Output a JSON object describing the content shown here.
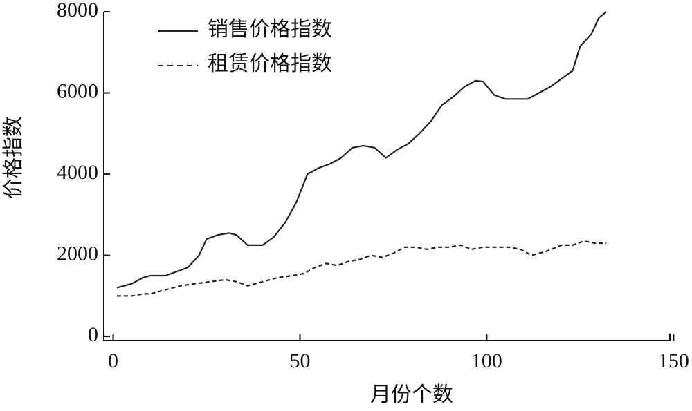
{
  "chart_data": {
    "type": "line",
    "xlabel": "月份个数",
    "ylabel": "价格指数",
    "xlim": [
      -2.5,
      149
    ],
    "ylim": [
      -100,
      8000
    ],
    "xticks": [
      0,
      50,
      100,
      150
    ],
    "yticks": [
      0,
      2000,
      4000,
      6000,
      8000
    ],
    "grid": false,
    "legend": "upper left",
    "series": [
      {
        "name": "销售价格指数",
        "color": "#222222",
        "linestyle": "solid",
        "x": [
          1,
          5,
          8,
          10,
          14,
          17,
          20,
          23,
          25,
          28,
          31,
          33,
          36,
          40,
          43,
          46,
          49,
          52,
          55,
          58,
          61,
          64,
          67,
          70,
          73,
          76,
          79,
          82,
          85,
          88,
          91,
          94,
          97,
          99,
          102,
          105,
          108,
          111,
          114,
          117,
          120,
          123,
          125,
          128,
          130,
          132
        ],
        "values": [
          1200,
          1300,
          1450,
          1500,
          1500,
          1600,
          1700,
          2000,
          2400,
          2500,
          2550,
          2500,
          2250,
          2250,
          2450,
          2800,
          3300,
          4000,
          4150,
          4250,
          4400,
          4650,
          4700,
          4650,
          4400,
          4600,
          4750,
          5000,
          5300,
          5700,
          5900,
          6150,
          6300,
          6280,
          5950,
          5850,
          5850,
          5850,
          6000,
          6150,
          6350,
          6550,
          7150,
          7450,
          7850,
          8000
        ]
      },
      {
        "name": "租赁价格指数",
        "color": "#222222",
        "linestyle": "dashed",
        "x": [
          1,
          5,
          8,
          10,
          14,
          18,
          22,
          26,
          30,
          33,
          36,
          40,
          44,
          48,
          51,
          54,
          57,
          60,
          63,
          66,
          69,
          72,
          75,
          78,
          81,
          84,
          87,
          90,
          93,
          96,
          99,
          102,
          106,
          109,
          112,
          116,
          120,
          123,
          126,
          129,
          132
        ],
        "values": [
          1000,
          1000,
          1050,
          1050,
          1150,
          1250,
          1300,
          1350,
          1400,
          1350,
          1250,
          1350,
          1450,
          1500,
          1550,
          1700,
          1800,
          1750,
          1850,
          1900,
          2000,
          1950,
          2050,
          2200,
          2200,
          2150,
          2200,
          2200,
          2250,
          2150,
          2200,
          2200,
          2200,
          2150,
          2000,
          2100,
          2250,
          2250,
          2350,
          2300,
          2300
        ]
      }
    ]
  }
}
